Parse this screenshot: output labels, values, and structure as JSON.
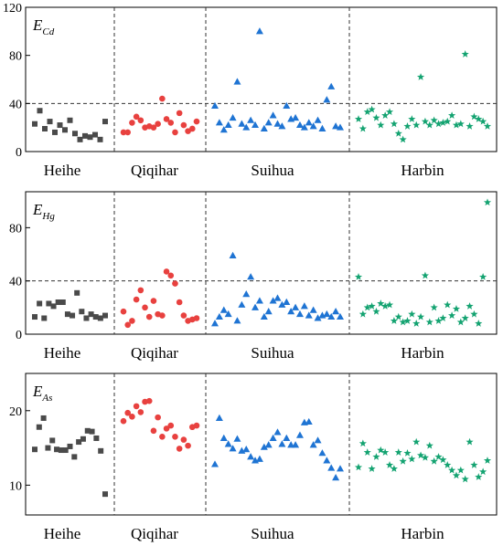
{
  "chart_data": [
    {
      "type": "scatter",
      "label_main": "E",
      "label_sub": "Cd",
      "ylim": [
        0,
        120
      ],
      "yticks": [
        0,
        40,
        80,
        120
      ],
      "threshold": 40,
      "regions": [
        "Heihe",
        "Qiqihar",
        "Suihua",
        "Harbin"
      ],
      "series": [
        {
          "region": "Heihe",
          "marker": "square",
          "color": "#4a4a4a",
          "x": [
            1,
            2,
            3,
            4,
            5,
            6,
            7,
            8,
            9,
            10,
            11,
            12,
            13,
            14,
            15
          ],
          "y": [
            23,
            34,
            19,
            25,
            16,
            22,
            18,
            26,
            15,
            10,
            13,
            12,
            14,
            10,
            25
          ]
        },
        {
          "region": "Qiqihar",
          "marker": "circle",
          "color": "#e8413f",
          "x": [
            1,
            2,
            3,
            4,
            5,
            6,
            7,
            8,
            9,
            10,
            11,
            12,
            13,
            14,
            15,
            16,
            17,
            18
          ],
          "y": [
            16,
            16,
            24,
            29,
            26,
            20,
            21,
            20,
            23,
            44,
            27,
            24,
            16,
            32,
            22,
            17,
            19,
            25
          ]
        },
        {
          "region": "Suihua",
          "marker": "triangle",
          "color": "#1f74d3",
          "x": [
            1,
            2,
            3,
            4,
            5,
            6,
            7,
            8,
            9,
            10,
            11,
            12,
            13,
            14,
            15,
            16,
            17,
            18,
            19,
            20,
            21,
            22,
            23,
            24,
            25,
            26,
            27,
            28,
            29
          ],
          "y": [
            38,
            24,
            18,
            22,
            28,
            58,
            23,
            20,
            26,
            22,
            100,
            19,
            24,
            30,
            23,
            21,
            38,
            27,
            28,
            22,
            20,
            24,
            21,
            26,
            19,
            43,
            54,
            21,
            20
          ]
        },
        {
          "region": "Harbin",
          "marker": "star",
          "color": "#14a371",
          "x": [
            1,
            2,
            3,
            4,
            5,
            6,
            7,
            8,
            9,
            10,
            11,
            12,
            13,
            14,
            15,
            16,
            17,
            18,
            19,
            20,
            21,
            22,
            23,
            24,
            25,
            26,
            27,
            28,
            29,
            30
          ],
          "y": [
            27,
            19,
            33,
            35,
            28,
            22,
            30,
            33,
            23,
            15,
            10,
            21,
            27,
            22,
            62,
            25,
            22,
            26,
            23,
            24,
            25,
            30,
            22,
            23,
            81,
            21,
            29,
            27,
            25,
            21
          ]
        }
      ]
    },
    {
      "type": "scatter",
      "label_main": "E",
      "label_sub": "Hg",
      "ylim": [
        0,
        107
      ],
      "yticks": [
        0,
        40,
        80
      ],
      "threshold": 40,
      "regions": [
        "Heihe",
        "Qiqihar",
        "Suihua",
        "Harbin"
      ],
      "series": [
        {
          "region": "Heihe",
          "marker": "square",
          "color": "#4a4a4a",
          "x": [
            1,
            2,
            3,
            4,
            5,
            6,
            7,
            8,
            9,
            10,
            11,
            12,
            13,
            14,
            15,
            16
          ],
          "y": [
            13,
            23,
            12,
            23,
            21,
            24,
            24,
            15,
            14,
            31,
            17,
            12,
            15,
            13,
            12,
            14
          ]
        },
        {
          "region": "Qiqihar",
          "marker": "circle",
          "color": "#e8413f",
          "x": [
            1,
            2,
            3,
            4,
            5,
            6,
            7,
            8,
            9,
            10,
            11,
            12,
            13,
            14,
            15,
            16,
            17,
            18
          ],
          "y": [
            17,
            7,
            10,
            26,
            33,
            20,
            13,
            25,
            15,
            14,
            47,
            44,
            38,
            24,
            14,
            10,
            11,
            12
          ]
        },
        {
          "region": "Suihua",
          "marker": "triangle",
          "color": "#1f74d3",
          "x": [
            1,
            2,
            3,
            4,
            5,
            6,
            7,
            8,
            9,
            10,
            11,
            12,
            13,
            14,
            15,
            16,
            17,
            18,
            19,
            20,
            21,
            22,
            23,
            24,
            25,
            26,
            27,
            28,
            29
          ],
          "y": [
            8,
            13,
            18,
            15,
            59,
            10,
            22,
            30,
            43,
            20,
            25,
            13,
            17,
            25,
            27,
            22,
            24,
            17,
            20,
            15,
            21,
            14,
            18,
            12,
            14,
            15,
            13,
            17,
            13
          ]
        },
        {
          "region": "Harbin",
          "marker": "star",
          "color": "#14a371",
          "x": [
            1,
            2,
            3,
            4,
            5,
            6,
            7,
            8,
            9,
            10,
            11,
            12,
            13,
            14,
            15,
            16,
            17,
            18,
            19,
            20,
            21,
            22,
            23,
            24,
            25,
            26,
            27,
            28,
            29,
            30
          ],
          "y": [
            43,
            15,
            20,
            21,
            17,
            23,
            21,
            22,
            10,
            13,
            9,
            10,
            15,
            8,
            13,
            44,
            9,
            20,
            10,
            12,
            22,
            14,
            19,
            9,
            12,
            21,
            15,
            8,
            43,
            99
          ]
        }
      ]
    },
    {
      "type": "scatter",
      "label_main": "E",
      "label_sub": "As",
      "ylim": [
        6,
        25
      ],
      "yticks": [
        10,
        20
      ],
      "threshold": null,
      "regions": [
        "Heihe",
        "Qiqihar",
        "Suihua",
        "Harbin"
      ],
      "series": [
        {
          "region": "Heihe",
          "marker": "square",
          "color": "#4a4a4a",
          "x": [
            1,
            2,
            3,
            4,
            5,
            6,
            7,
            8,
            9,
            10,
            11,
            12,
            13,
            14,
            15,
            16,
            17
          ],
          "y": [
            14.8,
            17.8,
            19.0,
            15.0,
            16.0,
            14.8,
            14.7,
            14.7,
            15.2,
            13.8,
            15.8,
            16.2,
            17.3,
            17.2,
            16.3,
            14.6,
            8.8
          ]
        },
        {
          "region": "Qiqihar",
          "marker": "circle",
          "color": "#e8413f",
          "x": [
            1,
            2,
            3,
            4,
            5,
            6,
            7,
            8,
            9,
            10,
            11,
            12,
            13,
            14,
            15,
            16,
            17,
            18
          ],
          "y": [
            18.6,
            19.7,
            19.2,
            20.6,
            19.8,
            21.2,
            21.3,
            17.3,
            19.1,
            16.5,
            17.6,
            18.0,
            16.5,
            14.9,
            16.1,
            15.3,
            17.8,
            18.0
          ]
        },
        {
          "region": "Suihua",
          "marker": "triangle",
          "color": "#1f74d3",
          "x": [
            1,
            2,
            3,
            4,
            5,
            6,
            7,
            8,
            9,
            10,
            11,
            12,
            13,
            14,
            15,
            16,
            17,
            18,
            19,
            20,
            21,
            22,
            23,
            24,
            25,
            26,
            27,
            28,
            29
          ],
          "y": [
            12.8,
            19.0,
            16.3,
            15.5,
            14.9,
            16.2,
            14.6,
            14.8,
            13.8,
            13.3,
            13.5,
            15.1,
            15.4,
            16.3,
            17.1,
            15.5,
            16.3,
            15.4,
            15.4,
            16.7,
            18.4,
            18.5,
            15.4,
            16.0,
            14.3,
            13.3,
            12.3,
            11.0,
            12.2
          ]
        },
        {
          "region": "Harbin",
          "marker": "star",
          "color": "#14a371",
          "x": [
            1,
            2,
            3,
            4,
            5,
            6,
            7,
            8,
            9,
            10,
            11,
            12,
            13,
            14,
            15,
            16,
            17,
            18,
            19,
            20,
            21,
            22,
            23,
            24,
            25,
            26,
            27,
            28,
            29,
            30
          ],
          "y": [
            12.4,
            15.6,
            14.4,
            12.2,
            13.8,
            14.7,
            14.4,
            12.7,
            12.2,
            14.4,
            13.2,
            14.3,
            13.5,
            15.8,
            14.0,
            13.7,
            15.3,
            13.2,
            13.8,
            13.4,
            12.7,
            12.0,
            11.3,
            12.0,
            10.8,
            15.8,
            12.7,
            11.1,
            11.8,
            13.3
          ]
        }
      ]
    }
  ]
}
